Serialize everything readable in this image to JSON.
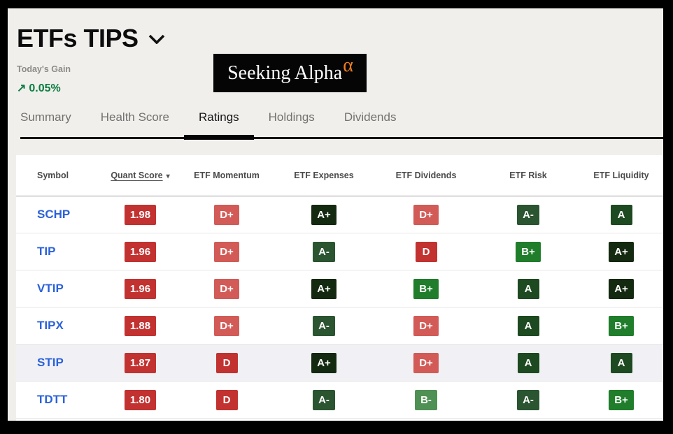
{
  "page": {
    "title": "ETFs TIPS",
    "todays_gain_label": "Today's Gain",
    "gain_arrow": "↗",
    "todays_gain_value": "0.05%"
  },
  "logo": {
    "text": "Seeking Alpha",
    "alpha": "α"
  },
  "tabs": [
    {
      "label": "Summary",
      "active": false
    },
    {
      "label": "Health Score",
      "active": false
    },
    {
      "label": "Ratings",
      "active": true
    },
    {
      "label": "Holdings",
      "active": false
    },
    {
      "label": "Dividends",
      "active": false
    }
  ],
  "table": {
    "columns": [
      "Symbol",
      "Quant Score",
      "ETF Momentum",
      "ETF Expenses",
      "ETF Dividends",
      "ETF Risk",
      "ETF Liquidity"
    ],
    "sort_column": "Quant Score",
    "sort_arrow": "▾",
    "rows": [
      {
        "symbol": "SCHP",
        "quant_score": "1.98",
        "momentum": "D+",
        "expenses": "A+",
        "dividends": "D+",
        "risk": "A-",
        "liquidity": "A",
        "highlighted": false
      },
      {
        "symbol": "TIP",
        "quant_score": "1.96",
        "momentum": "D+",
        "expenses": "A-",
        "dividends": "D",
        "risk": "B+",
        "liquidity": "A+",
        "highlighted": false
      },
      {
        "symbol": "VTIP",
        "quant_score": "1.96",
        "momentum": "D+",
        "expenses": "A+",
        "dividends": "B+",
        "risk": "A",
        "liquidity": "A+",
        "highlighted": false
      },
      {
        "symbol": "TIPX",
        "quant_score": "1.88",
        "momentum": "D+",
        "expenses": "A-",
        "dividends": "D+",
        "risk": "A",
        "liquidity": "B+",
        "highlighted": false
      },
      {
        "symbol": "STIP",
        "quant_score": "1.87",
        "momentum": "D",
        "expenses": "A+",
        "dividends": "D+",
        "risk": "A",
        "liquidity": "A",
        "highlighted": true
      },
      {
        "symbol": "TDTT",
        "quant_score": "1.80",
        "momentum": "D",
        "expenses": "A-",
        "dividends": "B-",
        "risk": "A-",
        "liquidity": "B+",
        "highlighted": false
      }
    ]
  },
  "colors": {
    "gain_green": "#0b7d41",
    "ticker_blue": "#2b62d9",
    "score_badge": "#c23230",
    "highlight_row": "#f1f1f5",
    "logo_alpha_orange": "#ef7c1e",
    "grades": {
      "A+": "#142a10",
      "A": "#1d4a20",
      "A-": "#2a5530",
      "B+": "#1f7d2b",
      "B-": "#4f9054",
      "D+": "#d25b57",
      "D": "#c23230"
    }
  }
}
